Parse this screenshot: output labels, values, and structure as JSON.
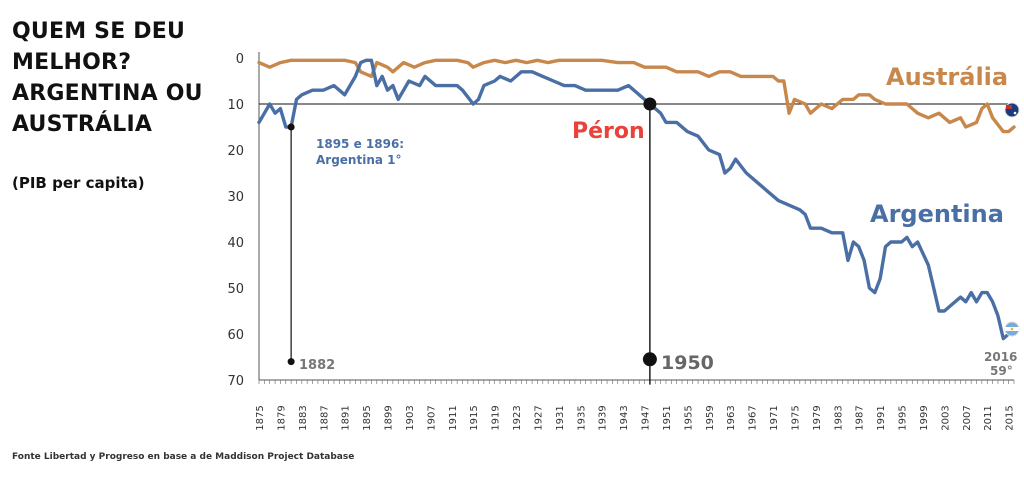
{
  "header": {
    "title_lines": [
      "QUEM SE DEU",
      "MELHOR?",
      "ARGENTINA OU",
      "AUSTRÁLIA"
    ],
    "subtitle": "(PIB per capita)"
  },
  "footer": {
    "source": "Fonte  Libertad y Progreso en base a de Maddison Project Database"
  },
  "colors": {
    "argentina": "#4a6fa5",
    "australia": "#c8884c",
    "peron_label": "#e8423a",
    "axis": "#555555"
  },
  "chart_data": {
    "type": "line",
    "xlim": [
      1875,
      2016
    ],
    "ylim": [
      0,
      70
    ],
    "y_inverted": true,
    "y_ticks": [
      0,
      10,
      20,
      30,
      40,
      50,
      60,
      70
    ],
    "x_ticks": [
      1875,
      1879,
      1883,
      1887,
      1891,
      1895,
      1899,
      1903,
      1907,
      1911,
      1915,
      1919,
      1923,
      1927,
      1931,
      1935,
      1939,
      1943,
      1947,
      1951,
      1955,
      1959,
      1963,
      1967,
      1971,
      1975,
      1979,
      1983,
      1987,
      1991,
      1995,
      1999,
      2003,
      2007,
      2011,
      2015
    ],
    "series": [
      {
        "name": "Austrália",
        "points": [
          [
            1875,
            1
          ],
          [
            1877,
            2
          ],
          [
            1879,
            1
          ],
          [
            1881,
            0.5
          ],
          [
            1883,
            0.5
          ],
          [
            1885,
            0.5
          ],
          [
            1887,
            0.5
          ],
          [
            1889,
            0.5
          ],
          [
            1891,
            0.5
          ],
          [
            1893,
            1
          ],
          [
            1894,
            3
          ],
          [
            1896,
            4
          ],
          [
            1897,
            1
          ],
          [
            1899,
            2
          ],
          [
            1900,
            3
          ],
          [
            1902,
            1
          ],
          [
            1904,
            2
          ],
          [
            1906,
            1
          ],
          [
            1908,
            0.5
          ],
          [
            1910,
            0.5
          ],
          [
            1912,
            0.5
          ],
          [
            1914,
            1
          ],
          [
            1915,
            2
          ],
          [
            1917,
            1
          ],
          [
            1919,
            0.5
          ],
          [
            1921,
            1
          ],
          [
            1923,
            0.5
          ],
          [
            1925,
            1
          ],
          [
            1927,
            0.5
          ],
          [
            1929,
            1
          ],
          [
            1931,
            0.5
          ],
          [
            1935,
            0.5
          ],
          [
            1939,
            0.5
          ],
          [
            1942,
            1
          ],
          [
            1945,
            1
          ],
          [
            1947,
            2
          ],
          [
            1949,
            2
          ],
          [
            1951,
            2
          ],
          [
            1953,
            3
          ],
          [
            1955,
            3
          ],
          [
            1957,
            3
          ],
          [
            1959,
            4
          ],
          [
            1961,
            3
          ],
          [
            1963,
            3
          ],
          [
            1965,
            4
          ],
          [
            1967,
            4
          ],
          [
            1969,
            4
          ],
          [
            1971,
            4
          ],
          [
            1972,
            5
          ],
          [
            1973,
            5
          ],
          [
            1974,
            12
          ],
          [
            1975,
            9
          ],
          [
            1977,
            10
          ],
          [
            1978,
            12
          ],
          [
            1980,
            10
          ],
          [
            1982,
            11
          ],
          [
            1984,
            9
          ],
          [
            1986,
            9
          ],
          [
            1987,
            8
          ],
          [
            1989,
            8
          ],
          [
            1990,
            9
          ],
          [
            1992,
            10
          ],
          [
            1994,
            10
          ],
          [
            1996,
            10
          ],
          [
            1998,
            12
          ],
          [
            2000,
            13
          ],
          [
            2002,
            12
          ],
          [
            2004,
            14
          ],
          [
            2006,
            13
          ],
          [
            2007,
            15
          ],
          [
            2009,
            14
          ],
          [
            2010,
            11
          ],
          [
            2011,
            10
          ],
          [
            2012,
            13
          ],
          [
            2014,
            16
          ],
          [
            2015,
            16
          ],
          [
            2016,
            15
          ]
        ]
      },
      {
        "name": "Argentina",
        "points": [
          [
            1875,
            14
          ],
          [
            1876,
            12
          ],
          [
            1877,
            10
          ],
          [
            1878,
            12
          ],
          [
            1879,
            11
          ],
          [
            1880,
            15
          ],
          [
            1881,
            15
          ],
          [
            1882,
            9
          ],
          [
            1883,
            8
          ],
          [
            1885,
            7
          ],
          [
            1887,
            7
          ],
          [
            1889,
            6
          ],
          [
            1890,
            7
          ],
          [
            1891,
            8
          ],
          [
            1892,
            6
          ],
          [
            1893,
            4
          ],
          [
            1894,
            1
          ],
          [
            1895,
            0.5
          ],
          [
            1896,
            0.5
          ],
          [
            1897,
            6
          ],
          [
            1898,
            4
          ],
          [
            1899,
            7
          ],
          [
            1900,
            6
          ],
          [
            1901,
            9
          ],
          [
            1902,
            7
          ],
          [
            1903,
            5
          ],
          [
            1905,
            6
          ],
          [
            1906,
            4
          ],
          [
            1908,
            6
          ],
          [
            1910,
            6
          ],
          [
            1912,
            6
          ],
          [
            1913,
            7
          ],
          [
            1915,
            10
          ],
          [
            1916,
            9
          ],
          [
            1917,
            6
          ],
          [
            1919,
            5
          ],
          [
            1920,
            4
          ],
          [
            1922,
            5
          ],
          [
            1924,
            3
          ],
          [
            1926,
            3
          ],
          [
            1928,
            4
          ],
          [
            1930,
            5
          ],
          [
            1932,
            6
          ],
          [
            1934,
            6
          ],
          [
            1936,
            7
          ],
          [
            1938,
            7
          ],
          [
            1940,
            7
          ],
          [
            1942,
            7
          ],
          [
            1944,
            6
          ],
          [
            1946,
            8
          ],
          [
            1947,
            9
          ],
          [
            1948,
            10
          ],
          [
            1950,
            12
          ],
          [
            1951,
            14
          ],
          [
            1953,
            14
          ],
          [
            1955,
            16
          ],
          [
            1957,
            17
          ],
          [
            1959,
            20
          ],
          [
            1961,
            21
          ],
          [
            1962,
            25
          ],
          [
            1963,
            24
          ],
          [
            1964,
            22
          ],
          [
            1966,
            25
          ],
          [
            1968,
            27
          ],
          [
            1970,
            29
          ],
          [
            1972,
            31
          ],
          [
            1974,
            32
          ],
          [
            1976,
            33
          ],
          [
            1977,
            34
          ],
          [
            1978,
            37
          ],
          [
            1980,
            37
          ],
          [
            1982,
            38
          ],
          [
            1984,
            38
          ],
          [
            1985,
            44
          ],
          [
            1986,
            40
          ],
          [
            1987,
            41
          ],
          [
            1988,
            44
          ],
          [
            1989,
            50
          ],
          [
            1990,
            51
          ],
          [
            1991,
            48
          ],
          [
            1992,
            41
          ],
          [
            1993,
            40
          ],
          [
            1995,
            40
          ],
          [
            1996,
            39
          ],
          [
            1997,
            41
          ],
          [
            1998,
            40
          ],
          [
            2000,
            45
          ],
          [
            2001,
            50
          ],
          [
            2002,
            55
          ],
          [
            2003,
            55
          ],
          [
            2004,
            54
          ],
          [
            2006,
            52
          ],
          [
            2007,
            53
          ],
          [
            2008,
            51
          ],
          [
            2009,
            53
          ],
          [
            2010,
            51
          ],
          [
            2011,
            51
          ],
          [
            2012,
            53
          ],
          [
            2013,
            56
          ],
          [
            2014,
            61
          ],
          [
            2015,
            60
          ],
          [
            2016,
            59
          ]
        ]
      }
    ],
    "annotations": {
      "note_1895": "1895 e 1896:",
      "note_1895_line2": "Argentina 1°",
      "peron": "Péron",
      "year_1882": "1882",
      "year_1950": "1950",
      "final_year": "2016",
      "final_rank": "59°"
    },
    "legend_labels": {
      "australia": "Austrália",
      "argentina": "Argentina"
    }
  }
}
